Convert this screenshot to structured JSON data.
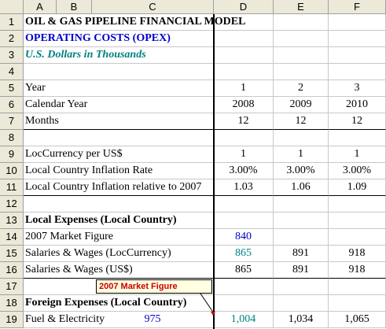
{
  "columns": [
    "A",
    "B",
    "C",
    "D",
    "E",
    "F"
  ],
  "rows": [
    "1",
    "2",
    "3",
    "4",
    "5",
    "6",
    "7",
    "8",
    "9",
    "10",
    "11",
    "12",
    "13",
    "14",
    "15",
    "16",
    "17",
    "18",
    "19"
  ],
  "title": "OIL & GAS PIPELINE FINANCIAL MODEL",
  "subtitle": "OPERATING COSTS (OPEX)",
  "units": "U.S. Dollars in Thousands",
  "year_label": "Year",
  "year": [
    "1",
    "2",
    "3"
  ],
  "calendar_label": "Calendar Year",
  "calendar": [
    "2008",
    "2009",
    "2010"
  ],
  "months_label": "Months",
  "months": [
    "12",
    "12",
    "12"
  ],
  "loc_label": "LocCurrency per US$",
  "loc": [
    "1",
    "1",
    "1"
  ],
  "infl_label": "Local Country Inflation Rate",
  "infl": [
    "3.00%",
    "3.00%",
    "3.00%"
  ],
  "infl07_label": "Local Country Inflation relative to 2007",
  "infl07": [
    "1.03",
    "1.06",
    "1.09"
  ],
  "local_exp_label": "Local Expenses (Local Country)",
  "mkt_label": "2007 Market Figure",
  "mkt": "840",
  "sal_loc_label": "Salaries & Wages (LocCurrency)",
  "sal_loc": [
    "865",
    "891",
    "918"
  ],
  "sal_usd_label": "Salaries & Wages (US$)",
  "sal_usd": [
    "865",
    "891",
    "918"
  ],
  "comment": "2007 Market Figure",
  "foreign_label": "Foreign Expenses (Local Country)",
  "fuel_label": "Fuel & Electricity",
  "fuel_c": "975",
  "fuel": [
    "1,004",
    "1,034",
    "1,065"
  ]
}
